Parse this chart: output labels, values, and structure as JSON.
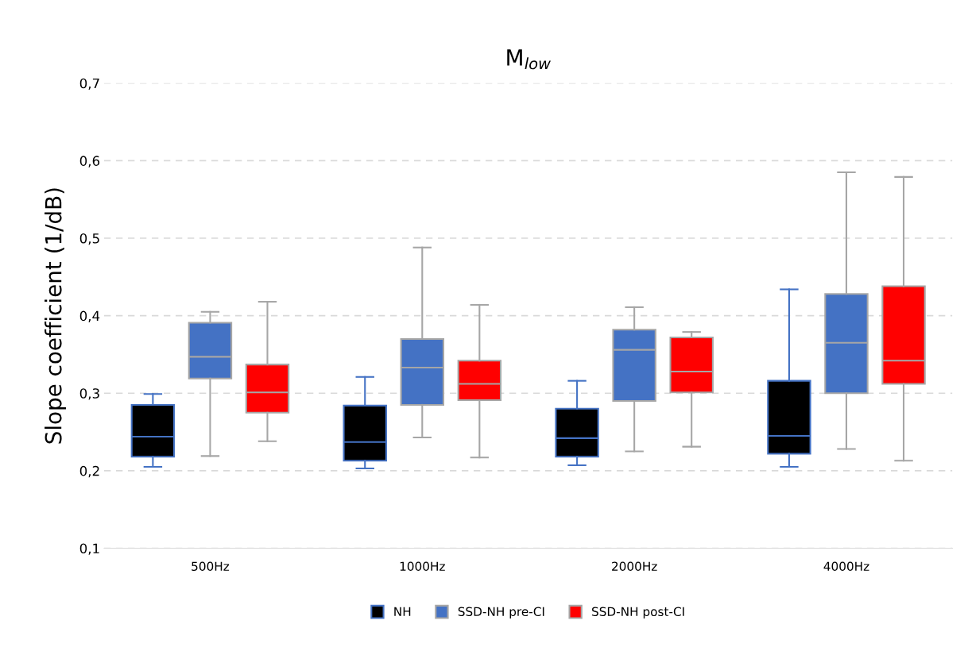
{
  "chart_data": {
    "type": "box",
    "title": "M$_{low}$",
    "ylabel": "Slope coefficient (1/dB)",
    "categories": [
      "500Hz",
      "1000Hz",
      "2000Hz",
      "4000Hz"
    ],
    "ylim": [
      0.1,
      0.7
    ],
    "yticks": [
      {
        "value": 0.1,
        "label": "0,1"
      },
      {
        "value": 0.2,
        "label": "0,2"
      },
      {
        "value": 0.3,
        "label": "0,3"
      },
      {
        "value": 0.4,
        "label": "0,4"
      },
      {
        "value": 0.5,
        "label": "0,5"
      },
      {
        "value": 0.6,
        "label": "0,6"
      },
      {
        "value": 0.7,
        "label": "0,7"
      }
    ],
    "grid": "y",
    "legend": "bottom",
    "series": [
      {
        "name": "NH",
        "color": "#000000",
        "boxes": [
          {
            "low": 0.205,
            "q1": 0.218,
            "median": 0.244,
            "q3": 0.285,
            "high": 0.299
          },
          {
            "low": 0.203,
            "q1": 0.213,
            "median": 0.237,
            "q3": 0.284,
            "high": 0.321
          },
          {
            "low": 0.207,
            "q1": 0.218,
            "median": 0.242,
            "q3": 0.28,
            "high": 0.316
          },
          {
            "low": 0.205,
            "q1": 0.222,
            "median": 0.245,
            "q3": 0.316,
            "high": 0.434
          }
        ]
      },
      {
        "name": "SSD-NH pre-CI",
        "color": "#4472c4",
        "boxes": [
          {
            "low": 0.219,
            "q1": 0.319,
            "median": 0.347,
            "q3": 0.391,
            "high": 0.405
          },
          {
            "low": 0.243,
            "q1": 0.285,
            "median": 0.333,
            "q3": 0.37,
            "high": 0.488
          },
          {
            "low": 0.225,
            "q1": 0.29,
            "median": 0.356,
            "q3": 0.382,
            "high": 0.411
          },
          {
            "low": 0.228,
            "q1": 0.3,
            "median": 0.365,
            "q3": 0.428,
            "high": 0.585
          }
        ]
      },
      {
        "name": "SSD-NH post-CI",
        "color": "#ff0000",
        "boxes": [
          {
            "low": 0.238,
            "q1": 0.275,
            "median": 0.301,
            "q3": 0.337,
            "high": 0.418
          },
          {
            "low": 0.217,
            "q1": 0.291,
            "median": 0.312,
            "q3": 0.342,
            "high": 0.414
          },
          {
            "low": 0.231,
            "q1": 0.301,
            "median": 0.328,
            "q3": 0.372,
            "high": 0.379
          },
          {
            "low": 0.213,
            "q1": 0.312,
            "median": 0.342,
            "q3": 0.438,
            "high": 0.579
          }
        ]
      }
    ]
  }
}
